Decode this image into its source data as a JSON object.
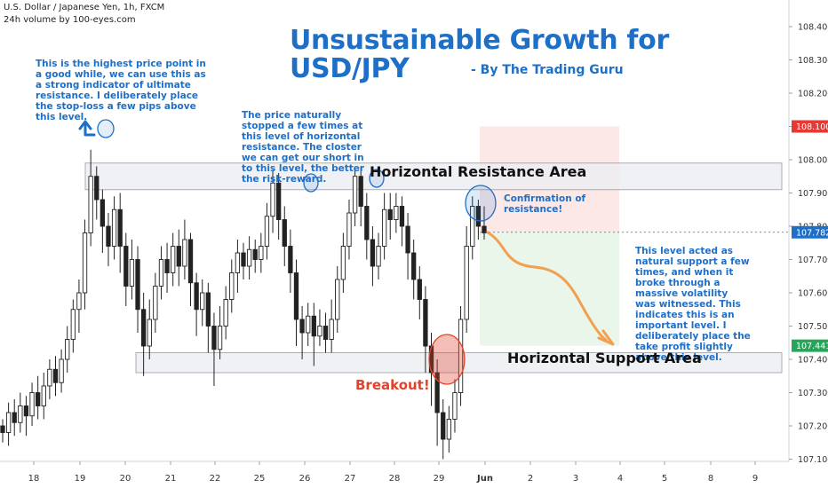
{
  "header": {
    "symbol_line": "U.S. Dollar / Japanese Yen, 1h, FXCM",
    "volume_line": "24h volume by 100-eyes.com"
  },
  "annotations": {
    "title_line1": "Unsustainable Growth for",
    "title_line2": "USD/JPY",
    "byline": "- By The Trading Guru",
    "highest_point_note": "This is the highest price point in a good while, we can use this as a strong indicator of ultimate resistance. I deliberately place the stop-loss a few pips above this level.",
    "resistance_note": "The price naturally stopped a few times at this level of horizontal resistance. The closter we can get our short in to this level, the better the risk-reward.",
    "confirmation_note": "Confirmation of resistance!",
    "support_note": "This level acted as natural support a few times, and when it broke through a massive volatility was witnessed. This indicates this is an important level. I deliberately place the take profit slightly above this level.",
    "resistance_label": "Horizontal Resistance Area",
    "support_label": "Horizontal Support Area",
    "breakout_label": "Breakout!"
  },
  "colors": {
    "up_candle": "#222222",
    "down_candle": "#222222",
    "annotation_blue": "#1e6fc7",
    "breakout_red": "#e0432b",
    "zone_fill": "#eeeff3",
    "stop_zone": "#fde2e2",
    "profit_zone": "#e6f5e6",
    "arrow_orange": "#f0a050",
    "stop_tag": "#e53935",
    "entry_tag": "#1e6fc7",
    "target_tag": "#26a65b"
  },
  "chart_data": {
    "type": "candlestick",
    "symbol": "USD/JPY",
    "timeframe": "1h",
    "ylim": [
      107.06,
      108.49
    ],
    "y_ticks": [
      108.4,
      108.3,
      108.2,
      108.1,
      108.0,
      107.9,
      107.8,
      107.7,
      107.6,
      107.5,
      107.4,
      107.3,
      107.2,
      107.1
    ],
    "x_ticks": [
      "18",
      "19",
      "20",
      "21",
      "22",
      "25",
      "26",
      "27",
      "28",
      "29",
      "Jun",
      "2",
      "3",
      "4",
      "5",
      "8",
      "9"
    ],
    "price_tags": {
      "stop_loss": "108.100",
      "current": "107.782",
      "take_profit": "107.441"
    },
    "zones": {
      "resistance": [
        107.91,
        107.99
      ],
      "support": [
        107.36,
        107.42
      ]
    },
    "position": {
      "type": "short",
      "entry": 107.782,
      "stop_loss": 108.1,
      "target": 107.441
    },
    "candles_ohlc": [
      [
        107.2,
        107.18,
        107.15,
        107.22
      ],
      [
        107.18,
        107.24,
        107.14,
        107.27
      ],
      [
        107.24,
        107.21,
        107.17,
        107.28
      ],
      [
        107.21,
        107.26,
        107.18,
        107.3
      ],
      [
        107.26,
        107.23,
        107.17,
        107.29
      ],
      [
        107.23,
        107.3,
        107.2,
        107.33
      ],
      [
        107.3,
        107.26,
        107.22,
        107.35
      ],
      [
        107.26,
        107.32,
        107.22,
        107.36
      ],
      [
        107.32,
        107.37,
        107.28,
        107.4
      ],
      [
        107.37,
        107.33,
        107.29,
        107.41
      ],
      [
        107.33,
        107.4,
        107.3,
        107.43
      ],
      [
        107.4,
        107.46,
        107.36,
        107.5
      ],
      [
        107.46,
        107.55,
        107.42,
        107.58
      ],
      [
        107.55,
        107.6,
        107.48,
        107.64
      ],
      [
        107.6,
        107.78,
        107.55,
        107.82
      ],
      [
        107.78,
        107.95,
        107.74,
        108.03
      ],
      [
        107.95,
        107.88,
        107.82,
        107.98
      ],
      [
        107.88,
        107.8,
        107.72,
        107.91
      ],
      [
        107.8,
        107.74,
        107.68,
        107.84
      ],
      [
        107.74,
        107.85,
        107.7,
        107.89
      ],
      [
        107.85,
        107.74,
        107.66,
        107.9
      ],
      [
        107.74,
        107.62,
        107.56,
        107.78
      ],
      [
        107.62,
        107.7,
        107.58,
        107.76
      ],
      [
        107.7,
        107.55,
        107.48,
        107.74
      ],
      [
        107.55,
        107.44,
        107.35,
        107.6
      ],
      [
        107.44,
        107.52,
        107.4,
        107.58
      ],
      [
        107.52,
        107.62,
        107.48,
        107.66
      ],
      [
        107.62,
        107.7,
        107.58,
        107.74
      ],
      [
        107.7,
        107.66,
        107.6,
        107.75
      ],
      [
        107.66,
        107.74,
        107.62,
        107.78
      ],
      [
        107.74,
        107.68,
        107.62,
        107.79
      ],
      [
        107.68,
        107.76,
        107.64,
        107.82
      ],
      [
        107.76,
        107.63,
        107.56,
        107.78
      ],
      [
        107.63,
        107.55,
        107.47,
        107.66
      ],
      [
        107.55,
        107.6,
        107.5,
        107.64
      ],
      [
        107.6,
        107.5,
        107.42,
        107.63
      ],
      [
        107.5,
        107.43,
        107.32,
        107.54
      ],
      [
        107.43,
        107.5,
        107.4,
        107.56
      ],
      [
        107.5,
        107.58,
        107.46,
        107.62
      ],
      [
        107.58,
        107.66,
        107.54,
        107.7
      ],
      [
        107.66,
        107.72,
        107.6,
        107.76
      ],
      [
        107.72,
        107.68,
        107.64,
        107.75
      ],
      [
        107.68,
        107.73,
        107.64,
        107.77
      ],
      [
        107.73,
        107.7,
        107.66,
        107.76
      ],
      [
        107.7,
        107.74,
        107.66,
        107.78
      ],
      [
        107.74,
        107.83,
        107.7,
        107.87
      ],
      [
        107.83,
        107.93,
        107.78,
        107.97
      ],
      [
        107.93,
        107.82,
        107.76,
        107.96
      ],
      [
        107.82,
        107.74,
        107.68,
        107.86
      ],
      [
        107.74,
        107.66,
        107.6,
        107.79
      ],
      [
        107.66,
        107.52,
        107.44,
        107.7
      ],
      [
        107.52,
        107.48,
        107.4,
        107.56
      ],
      [
        107.48,
        107.53,
        107.44,
        107.57
      ],
      [
        107.53,
        107.47,
        107.38,
        107.57
      ],
      [
        107.47,
        107.5,
        107.44,
        107.55
      ],
      [
        107.5,
        107.46,
        107.42,
        107.54
      ],
      [
        107.46,
        107.52,
        107.42,
        107.58
      ],
      [
        107.52,
        107.64,
        107.48,
        107.68
      ],
      [
        107.64,
        107.74,
        107.6,
        107.78
      ],
      [
        107.74,
        107.84,
        107.7,
        107.88
      ],
      [
        107.84,
        107.95,
        107.8,
        107.97
      ],
      [
        107.95,
        107.86,
        107.8,
        107.98
      ],
      [
        107.86,
        107.76,
        107.7,
        107.9
      ],
      [
        107.76,
        107.68,
        107.62,
        107.8
      ],
      [
        107.68,
        107.74,
        107.64,
        107.78
      ],
      [
        107.74,
        107.85,
        107.7,
        107.9
      ],
      [
        107.85,
        107.82,
        107.76,
        107.9
      ],
      [
        107.82,
        107.86,
        107.78,
        107.9
      ],
      [
        107.86,
        107.8,
        107.74,
        107.89
      ],
      [
        107.8,
        107.72,
        107.64,
        107.84
      ],
      [
        107.72,
        107.64,
        107.58,
        107.76
      ],
      [
        107.64,
        107.58,
        107.52,
        107.68
      ],
      [
        107.58,
        107.44,
        107.36,
        107.62
      ],
      [
        107.44,
        107.36,
        107.26,
        107.48
      ],
      [
        107.36,
        107.24,
        107.14,
        107.4
      ],
      [
        107.24,
        107.16,
        107.1,
        107.28
      ],
      [
        107.16,
        107.22,
        107.12,
        107.26
      ],
      [
        107.22,
        107.3,
        107.18,
        107.34
      ],
      [
        107.3,
        107.52,
        107.26,
        107.56
      ],
      [
        107.52,
        107.74,
        107.48,
        107.8
      ],
      [
        107.74,
        107.86,
        107.7,
        107.89
      ],
      [
        107.86,
        107.8,
        107.76,
        107.88
      ],
      [
        107.8,
        107.78,
        107.76,
        107.86
      ]
    ]
  }
}
